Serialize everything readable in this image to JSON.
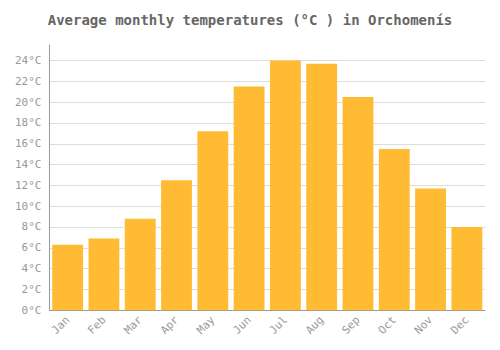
{
  "chart_data": {
    "type": "bar",
    "title": "Average monthly temperatures (°C ) in Orchomenís",
    "categories": [
      "Jan",
      "Feb",
      "Mar",
      "Apr",
      "May",
      "Jun",
      "Jul",
      "Aug",
      "Sep",
      "Oct",
      "Nov",
      "Dec"
    ],
    "values": [
      6.3,
      6.9,
      8.8,
      12.5,
      17.2,
      21.5,
      24.0,
      23.7,
      20.5,
      15.5,
      11.7,
      8.0
    ],
    "color": "#FFBB33",
    "ylim": [
      0,
      25.5
    ],
    "yticks": [
      {
        "value": 0,
        "label": "0°C"
      },
      {
        "value": 2,
        "label": "2°C"
      },
      {
        "value": 4,
        "label": "4°C"
      },
      {
        "value": 6,
        "label": "6°C"
      },
      {
        "value": 8,
        "label": "8°C"
      },
      {
        "value": 10,
        "label": "10°C"
      },
      {
        "value": 12,
        "label": "12°C"
      },
      {
        "value": 14,
        "label": "14°C"
      },
      {
        "value": 16,
        "label": "16°C"
      },
      {
        "value": 18,
        "label": "18°C"
      },
      {
        "value": 20,
        "label": "20°C"
      },
      {
        "value": 22,
        "label": "22°C"
      },
      {
        "value": 24,
        "label": "24°C"
      }
    ],
    "grid": true
  }
}
